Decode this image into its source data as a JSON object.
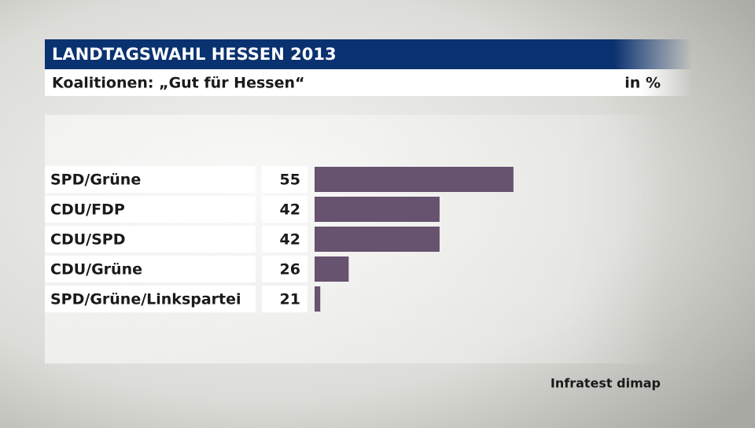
{
  "chart_data": {
    "type": "bar",
    "orientation": "horizontal",
    "title": "LANDTAGSWAHL HESSEN 2013",
    "subtitle": "Koalitionen: „Gut für Hessen“",
    "unit_label": "in %",
    "source": "Infratest dimap",
    "categories": [
      "SPD/Grüne",
      "CDU/FDP",
      "CDU/SPD",
      "CDU/Grüne",
      "SPD/Grüne/Linkspartei"
    ],
    "values": [
      55,
      42,
      42,
      26,
      21
    ],
    "color": "#67526f",
    "xlim": [
      20,
      60
    ]
  }
}
